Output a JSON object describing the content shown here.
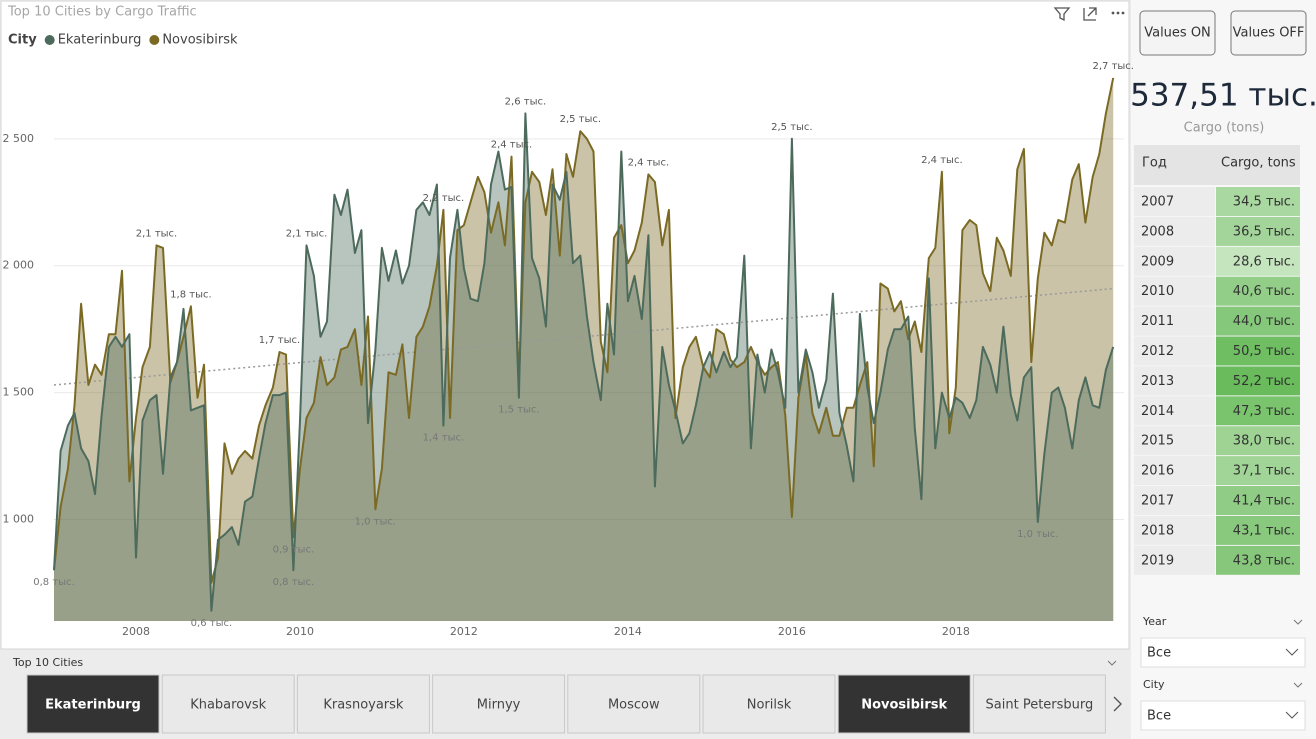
{
  "chart_data": {
    "type": "area",
    "title": "Top 10 Cities by Cargo Traffic",
    "legend_title": "City",
    "x": [
      2007,
      2007.08,
      2007.17,
      2007.25,
      2007.33,
      2007.42,
      2007.5,
      2007.58,
      2007.67,
      2007.75,
      2007.83,
      2007.92,
      2008,
      2008.08,
      2008.17,
      2008.25,
      2008.33,
      2008.42,
      2008.5,
      2008.58,
      2008.67,
      2008.75,
      2008.83,
      2008.92,
      2009,
      2009.08,
      2009.17,
      2009.25,
      2009.33,
      2009.42,
      2009.5,
      2009.58,
      2009.67,
      2009.75,
      2009.83,
      2009.92,
      2010,
      2010.08,
      2010.17,
      2010.25,
      2010.33,
      2010.42,
      2010.5,
      2010.58,
      2010.67,
      2010.75,
      2010.83,
      2010.92,
      2011,
      2011.08,
      2011.17,
      2011.25,
      2011.33,
      2011.42,
      2011.5,
      2011.58,
      2011.67,
      2011.75,
      2011.83,
      2011.92,
      2012,
      2012.08,
      2012.17,
      2012.25,
      2012.33,
      2012.42,
      2012.5,
      2012.58,
      2012.67,
      2012.75,
      2012.83,
      2012.92,
      2013,
      2013.08,
      2013.17,
      2013.25,
      2013.33,
      2013.42,
      2013.5,
      2013.58,
      2013.67,
      2013.75,
      2013.83,
      2013.92,
      2014,
      2014.08,
      2014.17,
      2014.25,
      2014.33,
      2014.42,
      2014.5,
      2014.58,
      2014.67,
      2014.75,
      2014.83,
      2014.92,
      2015,
      2015.08,
      2015.17,
      2015.25,
      2015.33,
      2015.42,
      2015.5,
      2015.58,
      2015.67,
      2015.75,
      2015.83,
      2015.92,
      2016,
      2016.08,
      2016.17,
      2016.25,
      2016.33,
      2016.42,
      2016.5,
      2016.58,
      2016.67,
      2016.75,
      2016.83,
      2016.92,
      2017,
      2017.08,
      2017.17,
      2017.25,
      2017.33,
      2017.42,
      2017.5,
      2017.58,
      2017.67,
      2017.75,
      2017.83,
      2017.92,
      2018,
      2018.08,
      2018.17,
      2018.25,
      2018.33,
      2018.42,
      2018.5,
      2018.58,
      2018.67,
      2018.75,
      2018.83,
      2018.92,
      2019,
      2019.08,
      2019.17,
      2019.25,
      2019.33,
      2019.42,
      2019.5,
      2019.58,
      2019.67,
      2019.75,
      2019.83,
      2019.92
    ],
    "series": [
      {
        "name": "Novosibirsk",
        "color": "#7b6a24",
        "values": [
          800,
          1050,
          1200,
          1450,
          1850,
          1530,
          1610,
          1570,
          1730,
          1730,
          1980,
          1150,
          1400,
          1600,
          1680,
          2080,
          2070,
          1540,
          1620,
          1720,
          1840,
          1480,
          1610,
          750,
          850,
          1300,
          1180,
          1240,
          1270,
          1240,
          1370,
          1450,
          1520,
          1660,
          1650,
          930,
          1200,
          1400,
          1460,
          1640,
          1530,
          1560,
          1670,
          1680,
          1750,
          1530,
          1800,
          1040,
          1200,
          1580,
          1570,
          1690,
          1400,
          1720,
          1760,
          1840,
          2000,
          2220,
          1400,
          2140,
          2160,
          2250,
          2350,
          2290,
          2130,
          2250,
          2080,
          2430,
          1540,
          2250,
          2370,
          2330,
          2200,
          2380,
          2040,
          2440,
          2350,
          2530,
          2500,
          2450,
          1700,
          1580,
          2110,
          2160,
          2010,
          2060,
          2170,
          2360,
          2330,
          2080,
          2220,
          1400,
          1600,
          1680,
          1720,
          1600,
          1560,
          1750,
          1730,
          1630,
          1600,
          1620,
          1680,
          1620,
          1570,
          1600,
          1620,
          1410,
          1010,
          1480,
          1650,
          1420,
          1340,
          1440,
          1330,
          1330,
          1440,
          1440,
          1530,
          1620,
          1210,
          1930,
          1910,
          1820,
          1860,
          1710,
          1780,
          1660,
          2030,
          2070,
          2370,
          1340,
          1520,
          2140,
          2180,
          2160,
          1970,
          1900,
          2110,
          2060,
          1960,
          2380,
          2460,
          1620,
          1950,
          2130,
          2080,
          2180,
          2170,
          2340,
          2400,
          2170,
          2350,
          2440,
          2600,
          2740
        ],
        "value_labels": [
          null,
          null,
          null,
          null,
          null,
          null,
          null,
          null,
          null,
          null,
          null,
          null,
          null,
          null,
          null,
          "2,1 тыс.",
          null,
          null,
          null,
          null,
          "1,8 тыс.",
          null,
          null,
          null,
          null,
          null,
          null,
          null,
          null,
          null,
          null,
          null,
          null,
          "1,7 тыс.",
          null,
          "0,9 тыс.",
          null,
          null,
          null,
          null,
          null,
          null,
          null,
          null,
          null,
          null,
          null,
          "1,0 тыс.",
          null,
          null,
          null,
          null,
          null,
          null,
          null,
          null,
          null,
          "2,2 тыс.",
          null,
          null,
          null,
          null,
          null,
          null,
          null,
          null,
          null,
          "2,4 тыс.",
          null,
          null,
          null,
          null,
          null,
          null,
          null,
          null,
          null,
          "2,5 тыс.",
          null,
          null,
          null,
          null,
          null,
          null,
          null,
          null,
          null,
          "2,4 тыс.",
          null,
          null,
          null,
          null,
          null,
          null,
          null,
          null,
          null,
          null,
          null,
          null,
          null,
          null,
          null,
          null,
          null,
          null,
          null,
          null,
          null,
          null,
          null,
          null,
          null,
          null,
          null,
          null,
          null,
          null,
          null,
          null,
          null,
          null,
          null,
          null,
          null,
          null,
          null,
          null,
          null,
          null,
          "2,4 тыс.",
          null,
          null,
          null,
          null,
          null,
          null,
          null,
          null,
          null,
          null,
          null,
          null,
          null,
          null,
          null,
          null,
          null,
          null,
          null,
          null,
          null,
          null,
          null,
          null,
          "2,7 тыс."
        ]
      },
      {
        "name": "Ekaterinburg",
        "color": "#4d6b5d",
        "values": [
          800,
          1270,
          1370,
          1420,
          1280,
          1230,
          1100,
          1410,
          1680,
          1720,
          1680,
          1730,
          850,
          1390,
          1470,
          1490,
          1180,
          1560,
          1620,
          1830,
          1430,
          1440,
          1450,
          640,
          920,
          940,
          970,
          900,
          1070,
          1090,
          1240,
          1380,
          1490,
          1490,
          1500,
          800,
          1390,
          2080,
          1960,
          1720,
          1780,
          2280,
          2200,
          2300,
          2050,
          2140,
          1380,
          1670,
          2070,
          1940,
          2060,
          1930,
          2000,
          2220,
          2250,
          2200,
          2320,
          1370,
          2030,
          2220,
          1990,
          1870,
          1860,
          2010,
          2320,
          2450,
          2300,
          2310,
          1480,
          2600,
          2030,
          1950,
          1760,
          2320,
          2260,
          2370,
          2010,
          2040,
          1800,
          1620,
          1470,
          1850,
          1650,
          2450,
          1860,
          1960,
          1790,
          2120,
          1130,
          1680,
          1530,
          1430,
          1300,
          1340,
          1450,
          1600,
          1660,
          1580,
          1660,
          1600,
          1640,
          2040,
          1280,
          1650,
          1500,
          1670,
          1580,
          1440,
          2500,
          1500,
          1670,
          1580,
          1440,
          1550,
          1890,
          1420,
          1290,
          1150,
          1810,
          1520,
          1380,
          1500,
          1670,
          1750,
          1750,
          1800,
          1360,
          1080,
          1950,
          1280,
          1500,
          1400,
          1480,
          1460,
          1400,
          1470,
          1680,
          1610,
          1500,
          1760,
          1490,
          1390,
          1560,
          1600,
          990,
          1260,
          1500,
          1520,
          1440,
          1280,
          1470,
          1560,
          1450,
          1440,
          1590,
          1680
        ],
        "value_labels": [
          "0,8 тыс.",
          null,
          null,
          null,
          null,
          null,
          null,
          null,
          null,
          null,
          null,
          null,
          null,
          null,
          null,
          null,
          null,
          null,
          null,
          null,
          null,
          null,
          null,
          "0,6 тыс.",
          null,
          null,
          null,
          null,
          null,
          null,
          null,
          null,
          null,
          null,
          null,
          "0,8 тыс.",
          null,
          "2,1 тыс.",
          null,
          null,
          null,
          null,
          null,
          null,
          null,
          null,
          null,
          null,
          null,
          null,
          null,
          null,
          null,
          null,
          null,
          null,
          null,
          "1,4 тыс.",
          null,
          null,
          null,
          null,
          null,
          null,
          null,
          null,
          null,
          null,
          "1,5 тыс.",
          "2,6 тыс.",
          null,
          null,
          null,
          null,
          null,
          null,
          null,
          null,
          null,
          null,
          null,
          null,
          null,
          null,
          null,
          null,
          null,
          null,
          null,
          null,
          null,
          null,
          null,
          null,
          null,
          null,
          null,
          null,
          null,
          null,
          null,
          null,
          null,
          null,
          null,
          null,
          null,
          null,
          "2,5 тыс.",
          null,
          null,
          null,
          null,
          null,
          null,
          null,
          null,
          null,
          null,
          null,
          null,
          null,
          null,
          null,
          null,
          null,
          null,
          null,
          null,
          null,
          null,
          null,
          null,
          null,
          null,
          null,
          null,
          null,
          null,
          null,
          null,
          null,
          null,
          null,
          "1,0 тыс.",
          null,
          null,
          null,
          null,
          null,
          null,
          null,
          null,
          null,
          null,
          null
        ]
      }
    ],
    "trendline": {
      "x": [
        2007,
        2019.92
      ],
      "values": [
        1530,
        1910
      ],
      "color": "#999999"
    },
    "xlim": [
      2007,
      2020.1
    ],
    "xticks": [
      2008,
      2010,
      2012,
      2014,
      2016,
      2018
    ],
    "ylim": [
      600,
      2850
    ],
    "yticks": [
      {
        "value": 1000,
        "label": "1 000"
      },
      {
        "value": 1500,
        "label": "1 500"
      },
      {
        "value": 2000,
        "label": "2 000"
      },
      {
        "value": 2500,
        "label": "2 500"
      }
    ],
    "grid": true
  },
  "buttons": [
    "Values ON",
    "Values OFF"
  ],
  "kpi": {
    "value": "537,51 тыс.",
    "label": "Cargo (tons)"
  },
  "table": {
    "headers": [
      "Год",
      "Cargo, tons"
    ],
    "rows": [
      [
        "2007",
        "34,5 тыс."
      ],
      [
        "2008",
        "36,5 тыс."
      ],
      [
        "2009",
        "28,6 тыс."
      ],
      [
        "2010",
        "40,6 тыс."
      ],
      [
        "2011",
        "44,0 тыс."
      ],
      [
        "2012",
        "50,5 тыс."
      ],
      [
        "2013",
        "52,2 тыс."
      ],
      [
        "2014",
        "47,3 тыс."
      ],
      [
        "2015",
        "38,0 тыс."
      ],
      [
        "2016",
        "37,1 тыс."
      ],
      [
        "2017",
        "41,4 тыс."
      ],
      [
        "2018",
        "43,1 тыс."
      ],
      [
        "2019",
        "43,8 тыс."
      ]
    ],
    "row_colors": [
      "#a9d8a0",
      "#a3d59a",
      "#c5e5be",
      "#93ce89",
      "#86c87b",
      "#6fbe62",
      "#69bb5c",
      "#7ac46e",
      "#9ed394",
      "#a1d497",
      "#90cc85",
      "#89c97e",
      "#86c77b"
    ]
  },
  "slicers": [
    {
      "title": "Year",
      "value": "Все"
    },
    {
      "title": "City",
      "value": "Все"
    }
  ],
  "city_slicer": {
    "title": "Top 10 Cities",
    "items": [
      {
        "label": "Ekaterinburg",
        "selected": true
      },
      {
        "label": "Khabarovsk",
        "selected": false
      },
      {
        "label": "Krasnoyarsk",
        "selected": false
      },
      {
        "label": "Mirnyy",
        "selected": false
      },
      {
        "label": "Moscow",
        "selected": false
      },
      {
        "label": "Norilsk",
        "selected": false
      },
      {
        "label": "Novosibirsk",
        "selected": true
      },
      {
        "label": "Saint Petersburg",
        "selected": false
      }
    ]
  }
}
